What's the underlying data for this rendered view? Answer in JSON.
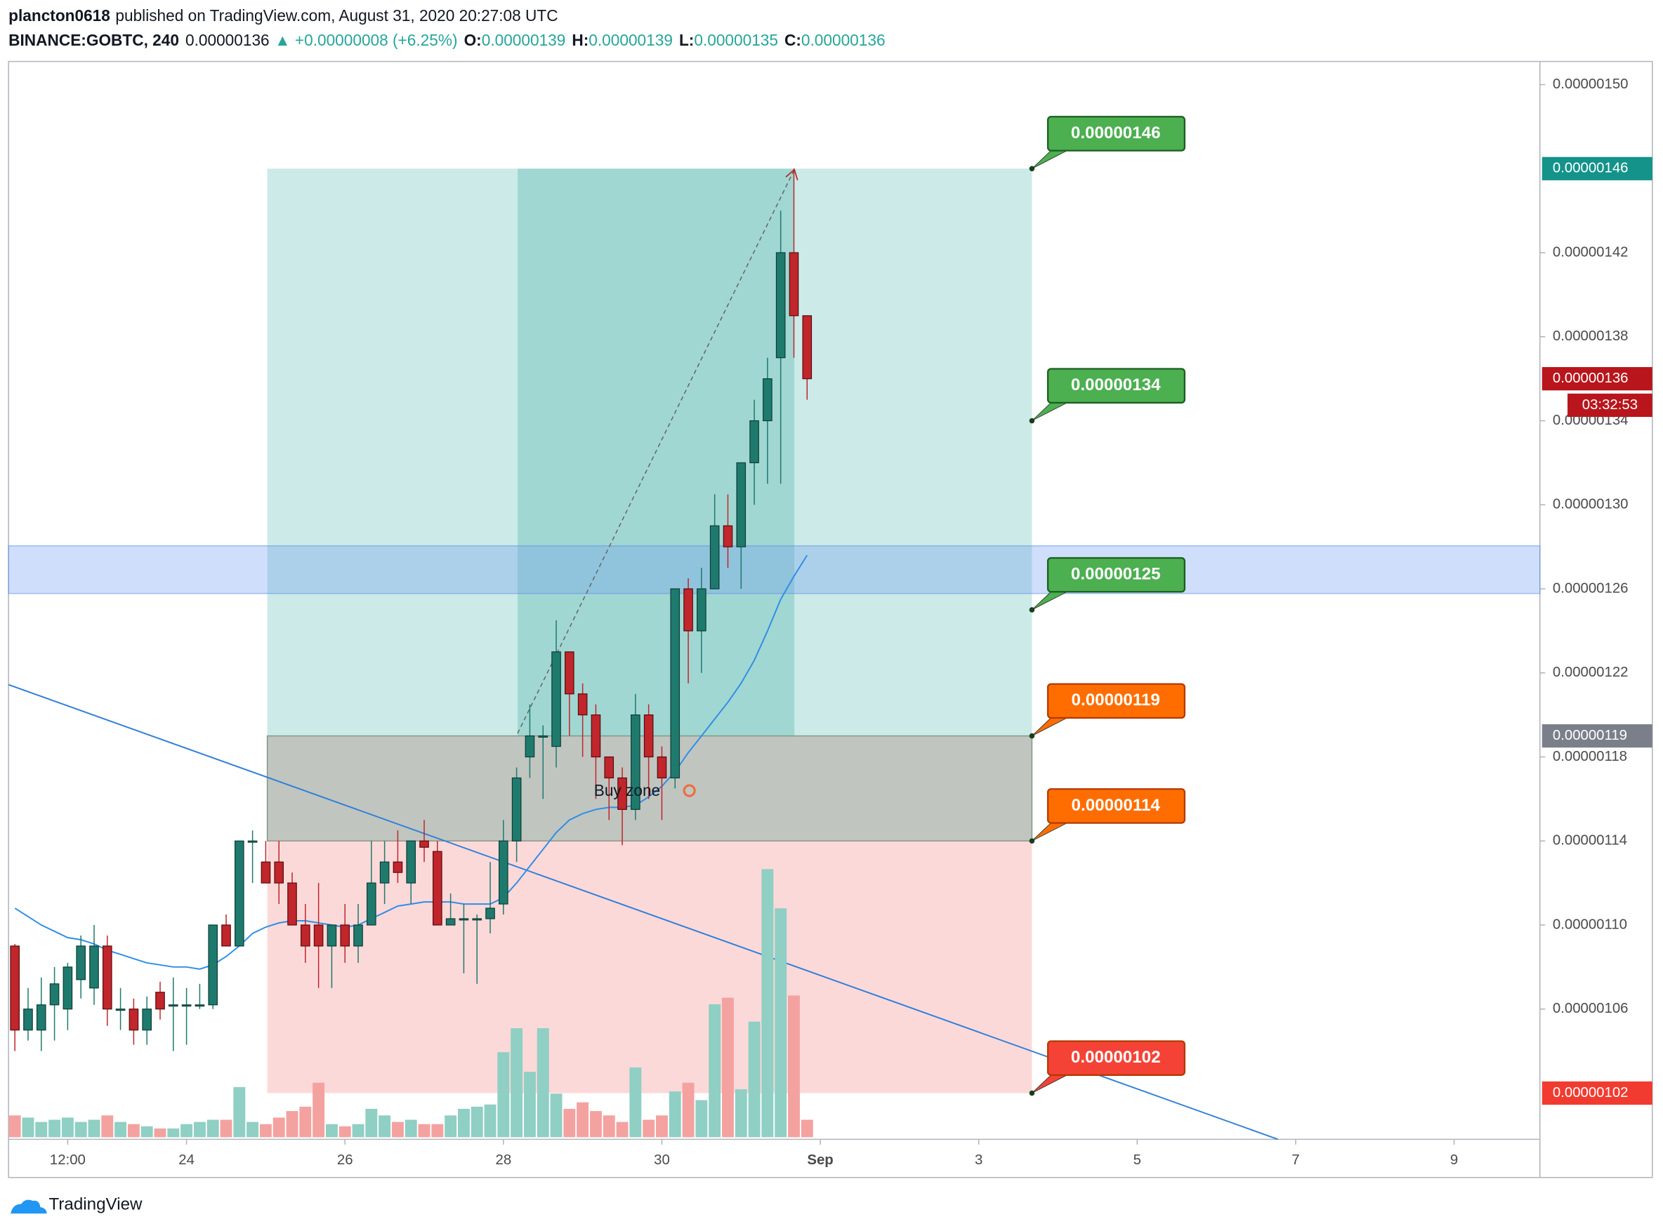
{
  "header": {
    "author": "plancton0618",
    "published": "published on TradingView.com, August 31, 2020 20:27:08 UTC",
    "symbol": "BINANCE:GOBTC, 240",
    "last": "0.00000136",
    "change": "▲ +0.00000008 (+6.25%)",
    "ohlc": [
      {
        "label": "O:",
        "value": "0.00000139"
      },
      {
        "label": "H:",
        "value": "0.00000139"
      },
      {
        "label": "L:",
        "value": "0.00000135"
      },
      {
        "label": "C:",
        "value": "0.00000136"
      }
    ]
  },
  "footer": {
    "brand": "TradingView"
  },
  "chart_data": {
    "type": "candlestick",
    "up_color": "#1f7a6e",
    "down_color": "#c0262b",
    "up_volume_color": "#8fcfc4",
    "down_volume_color": "#f4a2a0",
    "ylim": [
      9.99e-07,
      1.51e-06
    ],
    "yticks": [
      {
        "value": 1.5e-06,
        "label": "0.00000150"
      },
      {
        "value": 1.42e-06,
        "label": "0.00000142"
      },
      {
        "value": 1.38e-06,
        "label": "0.00000138"
      },
      {
        "value": 1.34e-06,
        "label": "0.00000134"
      },
      {
        "value": 1.3e-06,
        "label": "0.00000130"
      },
      {
        "value": 1.26e-06,
        "label": "0.00000126"
      },
      {
        "value": 1.22e-06,
        "label": "0.00000122"
      },
      {
        "value": 1.18e-06,
        "label": "0.00000118"
      },
      {
        "value": 1.14e-06,
        "label": "0.00000114"
      },
      {
        "value": 1.1e-06,
        "label": "0.00000110"
      },
      {
        "value": 1.06e-06,
        "label": "0.00000106"
      }
    ],
    "price_labels": [
      {
        "value": 1.46e-06,
        "label": "0.00000146",
        "color": "#14938a"
      },
      {
        "value": 1.36e-06,
        "label": "0.00000136",
        "color": "#b8161c"
      },
      {
        "value": 1.19e-06,
        "label": "0.00000119",
        "color": "#7b7f8a"
      },
      {
        "value": 1.02e-06,
        "label": "0.00000102",
        "color": "#f23b30"
      }
    ],
    "countdown": "03:32:53",
    "xlim": [
      -0.48,
      115.5
    ],
    "xticks": [
      {
        "value": 4,
        "label": "12:00"
      },
      {
        "value": 13,
        "label": "24"
      },
      {
        "value": 25,
        "label": "26"
      },
      {
        "value": 37,
        "label": "28"
      },
      {
        "value": 49,
        "label": "30"
      },
      {
        "value": 61,
        "label": "Sep"
      },
      {
        "value": 73,
        "label": "3"
      },
      {
        "value": 85,
        "label": "5"
      },
      {
        "value": 97,
        "label": "7"
      },
      {
        "value": 109,
        "label": "9"
      }
    ],
    "candles": {
      "open": [
        1.09e-06,
        1.05e-06,
        1.05e-06,
        1.062e-06,
        1.06e-06,
        1.074e-06,
        1.07e-06,
        1.09e-06,
        1.06e-06,
        1.06e-06,
        1.05e-06,
        1.068e-06,
        1.062e-06,
        1.062e-06,
        1.062e-06,
        1.062e-06,
        1.1e-06,
        1.09e-06,
        1.14e-06,
        1.13e-06,
        1.13e-06,
        1.12e-06,
        1.1e-06,
        1.1e-06,
        1.09e-06,
        1.1e-06,
        1.09e-06,
        1.1e-06,
        1.12e-06,
        1.13e-06,
        1.12e-06,
        1.14e-06,
        1.135e-06,
        1.1e-06,
        1.103e-06,
        1.103e-06,
        1.103e-06,
        1.11e-06,
        1.14e-06,
        1.18e-06,
        1.19e-06,
        1.185e-06,
        1.23e-06,
        1.21e-06,
        1.2e-06,
        1.18e-06,
        1.17e-06,
        1.155e-06,
        1.2e-06,
        1.18e-06,
        1.17e-06,
        1.26e-06,
        1.24e-06,
        1.26e-06,
        1.29e-06,
        1.28e-06,
        1.32e-06,
        1.34e-06,
        1.37e-06,
        1.42e-06,
        1.39e-06
      ],
      "high": [
        1.091e-06,
        1.07e-06,
        1.075e-06,
        1.08e-06,
        1.082e-06,
        1.095e-06,
        1.1e-06,
        1.095e-06,
        1.07e-06,
        1.065e-06,
        1.066e-06,
        1.073e-06,
        1.075e-06,
        1.07e-06,
        1.072e-06,
        1.1e-06,
        1.105e-06,
        1.14e-06,
        1.145e-06,
        1.14e-06,
        1.14e-06,
        1.125e-06,
        1.11e-06,
        1.12e-06,
        1.1e-06,
        1.11e-06,
        1.11e-06,
        1.14e-06,
        1.14e-06,
        1.145e-06,
        1.14e-06,
        1.15e-06,
        1.14e-06,
        1.115e-06,
        1.11e-06,
        1.105e-06,
        1.13e-06,
        1.15e-06,
        1.175e-06,
        1.205e-06,
        1.195e-06,
        1.245e-06,
        1.23e-06,
        1.215e-06,
        1.205e-06,
        1.18e-06,
        1.175e-06,
        1.21e-06,
        1.205e-06,
        1.185e-06,
        1.26e-06,
        1.265e-06,
        1.27e-06,
        1.305e-06,
        1.305e-06,
        1.32e-06,
        1.35e-06,
        1.37e-06,
        1.44e-06,
        1.46e-06,
        1.39e-06
      ],
      "low": [
        1.04e-06,
        1.045e-06,
        1.04e-06,
        1.045e-06,
        1.05e-06,
        1.065e-06,
        1.062e-06,
        1.052e-06,
        1.05e-06,
        1.043e-06,
        1.043e-06,
        1.055e-06,
        1.04e-06,
        1.043e-06,
        1.06e-06,
        1.06e-06,
        1.09e-06,
        1.09e-06,
        1.12e-06,
        1.12e-06,
        1.11e-06,
        1.1e-06,
        1.082e-06,
        1.07e-06,
        1.07e-06,
        1.082e-06,
        1.082e-06,
        1.1e-06,
        1.11e-06,
        1.12e-06,
        1.11e-06,
        1.13e-06,
        1.1e-06,
        1.1e-06,
        1.077e-06,
        1.072e-06,
        1.096e-06,
        1.105e-06,
        1.13e-06,
        1.17e-06,
        1.16e-06,
        1.175e-06,
        1.19e-06,
        1.18e-06,
        1.16e-06,
        1.15e-06,
        1.138e-06,
        1.15e-06,
        1.16e-06,
        1.15e-06,
        1.165e-06,
        1.215e-06,
        1.22e-06,
        1.26e-06,
        1.27e-06,
        1.26e-06,
        1.3e-06,
        1.31e-06,
        1.31e-06,
        1.37e-06,
        1.35e-06
      ],
      "close": [
        1.05e-06,
        1.06e-06,
        1.062e-06,
        1.072e-06,
        1.08e-06,
        1.09e-06,
        1.09e-06,
        1.06e-06,
        1.06e-06,
        1.05e-06,
        1.06e-06,
        1.06e-06,
        1.062e-06,
        1.062e-06,
        1.062e-06,
        1.1e-06,
        1.09e-06,
        1.14e-06,
        1.14e-06,
        1.12e-06,
        1.12e-06,
        1.1e-06,
        1.09e-06,
        1.09e-06,
        1.1e-06,
        1.09e-06,
        1.1e-06,
        1.12e-06,
        1.13e-06,
        1.125e-06,
        1.14e-06,
        1.137e-06,
        1.1e-06,
        1.103e-06,
        1.103e-06,
        1.103e-06,
        1.108e-06,
        1.14e-06,
        1.17e-06,
        1.19e-06,
        1.19e-06,
        1.23e-06,
        1.21e-06,
        1.2e-06,
        1.18e-06,
        1.17e-06,
        1.155e-06,
        1.2e-06,
        1.18e-06,
        1.17e-06,
        1.26e-06,
        1.24e-06,
        1.26e-06,
        1.29e-06,
        1.28e-06,
        1.32e-06,
        1.34e-06,
        1.36e-06,
        1.42e-06,
        1.39e-06,
        1.36e-06
      ]
    },
    "volume": [
      20,
      18,
      14,
      16,
      18,
      14,
      16,
      20,
      14,
      12,
      10,
      8,
      8,
      12,
      14,
      16,
      16,
      46,
      14,
      12,
      18,
      24,
      28,
      50,
      12,
      10,
      12,
      26,
      20,
      14,
      16,
      12,
      12,
      20,
      26,
      28,
      30,
      78,
      100,
      60,
      100,
      40,
      26,
      32,
      24,
      20,
      14,
      64,
      16,
      20,
      42,
      50,
      34,
      122,
      128,
      44,
      106,
      246,
      210,
      130,
      16
    ],
    "ma": {
      "color": "#2f8ee6",
      "values": [
        1.108e-06,
        1.104e-06,
        1.1e-06,
        1.097e-06,
        1.094e-06,
        1.093e-06,
        1.091e-06,
        1.088e-06,
        1.086e-06,
        1.084e-06,
        1.082e-06,
        1.081e-06,
        1.08e-06,
        1.08e-06,
        1.079e-06,
        1.081e-06,
        1.085e-06,
        1.09e-06,
        1.096e-06,
        1.099e-06,
        1.101e-06,
        1.102e-06,
        1.102e-06,
        1.101e-06,
        1.1e-06,
        1.099e-06,
        1.1e-06,
        1.103e-06,
        1.106e-06,
        1.109e-06,
        1.11e-06,
        1.111e-06,
        1.111e-06,
        1.111e-06,
        1.11e-06,
        1.11e-06,
        1.11e-06,
        1.113e-06,
        1.12e-06,
        1.128e-06,
        1.136e-06,
        1.144e-06,
        1.15e-06,
        1.153e-06,
        1.155e-06,
        1.156e-06,
        1.156e-06,
        1.157e-06,
        1.161e-06,
        1.166e-06,
        1.173e-06,
        1.182e-06,
        1.19e-06,
        1.198e-06,
        1.206e-06,
        1.215e-06,
        1.226e-06,
        1.24e-06,
        1.255e-06,
        1.266e-06,
        1.276e-06
      ]
    },
    "annotations": [
      {
        "value": 1.46e-06,
        "label": "0.00000146",
        "color": "#4caf50"
      },
      {
        "value": 1.34e-06,
        "label": "0.00000134",
        "color": "#4caf50"
      },
      {
        "value": 1.25e-06,
        "label": "0.00000125",
        "color": "#4caf50"
      },
      {
        "value": 1.19e-06,
        "label": "0.00000119",
        "color": "#ff6d00"
      },
      {
        "value": 1.14e-06,
        "label": "0.00000114",
        "color": "#ff6d00"
      },
      {
        "value": 1.02e-06,
        "label": "0.00000102",
        "color": "#f44336"
      }
    ],
    "buy_zone_label": "Buy zone"
  }
}
